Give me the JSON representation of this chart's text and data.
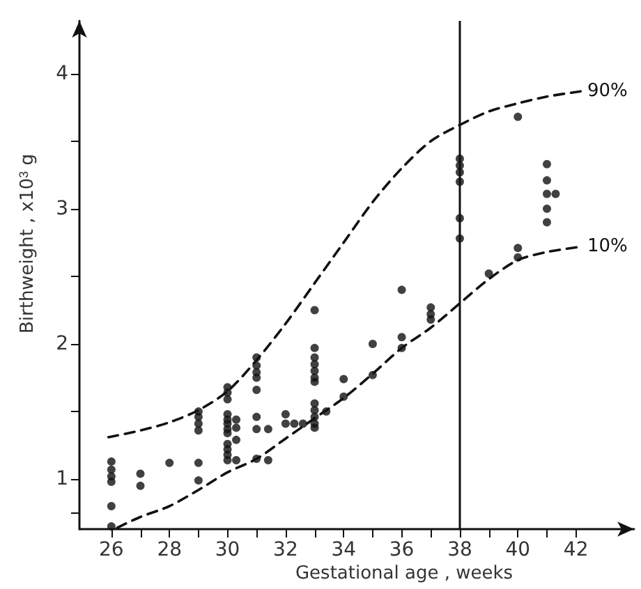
{
  "chart_data": {
    "type": "scatter",
    "xlabel": "Gestational age , weeks",
    "ylabel": "Birthweight , x10$^{3}$ g",
    "xlim": [
      24.9,
      44
    ],
    "xticks": [
      26,
      {
        "value": 27,
        "label": null
      },
      28,
      {
        "value": 29,
        "label": null
      },
      30,
      {
        "value": 31,
        "label": null
      },
      32,
      {
        "value": 33,
        "label": null
      },
      34,
      {
        "value": 35,
        "label": null
      },
      36,
      {
        "value": 37,
        "label": null
      },
      38,
      {
        "value": 39,
        "label": null
      },
      40,
      {
        "value": 41,
        "label": null
      },
      42
    ],
    "ylim": [
      0.63,
      4.39
    ],
    "yticks": [
      {
        "value": 0.75,
        "label": null
      },
      1,
      {
        "value": 1.5,
        "label": null
      },
      2,
      {
        "value": 2.5,
        "label": null
      },
      3,
      {
        "value": 3.5,
        "label": null
      },
      4
    ],
    "grid": false,
    "legend": false,
    "marker": "circle",
    "ref_lines": [
      {
        "axis": "x",
        "value": 38,
        "color": "#111111",
        "line_style": "solid"
      }
    ],
    "series": [
      {
        "color": "#111111",
        "x": [
          26,
          26,
          26,
          26,
          26,
          26,
          27,
          27,
          28,
          29,
          29,
          29,
          29,
          29,
          29,
          30,
          30,
          30,
          30,
          30,
          30,
          30,
          30,
          30,
          30,
          30,
          30,
          30.3,
          30.3,
          30.3,
          30.3,
          31,
          31,
          31,
          31,
          31,
          31,
          31,
          31,
          31.4,
          31.4,
          32,
          32,
          32.3,
          32.6,
          33,
          33,
          33,
          33,
          33,
          33,
          33,
          33,
          33,
          33,
          33,
          33,
          33.4,
          34,
          34,
          35,
          35,
          36,
          36,
          36,
          37,
          37,
          37,
          38,
          38,
          38,
          38,
          38,
          38,
          39,
          40,
          40,
          40,
          41,
          41,
          41,
          41,
          41,
          41.3
        ],
        "values": [
          1.13,
          1.07,
          1.02,
          0.98,
          0.8,
          0.65,
          1.04,
          0.95,
          1.12,
          1.5,
          1.46,
          1.41,
          1.36,
          1.12,
          0.99,
          1.68,
          1.64,
          1.59,
          1.48,
          1.44,
          1.41,
          1.37,
          1.34,
          1.26,
          1.22,
          1.18,
          1.14,
          1.44,
          1.38,
          1.29,
          1.14,
          1.9,
          1.84,
          1.79,
          1.75,
          1.66,
          1.46,
          1.37,
          1.15,
          1.37,
          1.14,
          1.48,
          1.41,
          1.41,
          1.41,
          2.25,
          1.97,
          1.9,
          1.85,
          1.8,
          1.75,
          1.72,
          1.56,
          1.51,
          1.46,
          1.41,
          1.38,
          1.5,
          1.74,
          1.61,
          2.0,
          1.77,
          2.4,
          2.05,
          1.97,
          2.27,
          2.22,
          2.18,
          3.37,
          3.32,
          3.27,
          3.2,
          2.93,
          2.78,
          2.52,
          3.68,
          2.71,
          2.64,
          3.33,
          3.21,
          3.11,
          3.0,
          2.9,
          3.11
        ]
      },
      {
        "type": "line",
        "name": "90%",
        "color": "#111111",
        "line_style": "dashed",
        "marker": "none",
        "x": [
          25.9,
          27,
          28,
          29,
          30,
          31,
          32,
          33,
          34,
          35,
          36,
          37,
          38,
          39,
          40,
          41,
          42.2
        ],
        "values": [
          1.31,
          1.36,
          1.42,
          1.51,
          1.65,
          1.88,
          2.15,
          2.45,
          2.75,
          3.05,
          3.3,
          3.5,
          3.62,
          3.72,
          3.78,
          3.83,
          3.87
        ]
      },
      {
        "type": "line",
        "name": "10%",
        "color": "#111111",
        "line_style": "dashed",
        "marker": "none",
        "x": [
          26.2,
          27,
          28,
          29,
          30,
          31,
          32,
          33,
          34,
          35,
          36,
          37,
          38,
          39,
          40,
          41,
          42.2
        ],
        "values": [
          0.64,
          0.72,
          0.8,
          0.92,
          1.05,
          1.15,
          1.3,
          1.45,
          1.6,
          1.78,
          1.97,
          2.12,
          2.3,
          2.48,
          2.62,
          2.68,
          2.72
        ]
      }
    ]
  }
}
